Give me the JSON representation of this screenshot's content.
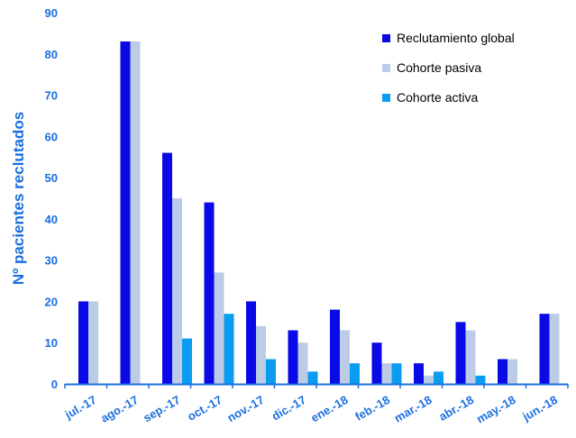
{
  "chart_data": {
    "type": "bar",
    "title": "",
    "xlabel": "",
    "ylabel": "Nº pacientes reclutados",
    "ylim": [
      0,
      90
    ],
    "yticks": [
      0,
      10,
      20,
      30,
      40,
      50,
      60,
      70,
      80,
      90
    ],
    "grid": false,
    "legend_position": "top-right",
    "categories": [
      "jul.-17",
      "ago.-17",
      "sep.-17",
      "oct.-17",
      "nov.-17",
      "dic.-17",
      "ene.-18",
      "feb.-18",
      "mar.-18",
      "abr.-18",
      "may.-18",
      "jun.-18"
    ],
    "series": [
      {
        "name": "Reclutamiento global",
        "color": "#0a0ae6",
        "values": [
          20,
          83,
          56,
          44,
          20,
          13,
          18,
          10,
          5,
          15,
          6,
          17
        ]
      },
      {
        "name": "Cohorte pasiva",
        "color": "#bccbe6",
        "values": [
          20,
          83,
          45,
          27,
          14,
          10,
          13,
          5,
          2,
          13,
          6,
          17
        ]
      },
      {
        "name": "Cohorte activa",
        "color": "#0a9cf0",
        "values": [
          0,
          0,
          11,
          17,
          6,
          3,
          5,
          5,
          3,
          2,
          0,
          0
        ]
      }
    ],
    "axis_color": "#1a6fe0",
    "tick_label_color": "#1a6fe0"
  }
}
